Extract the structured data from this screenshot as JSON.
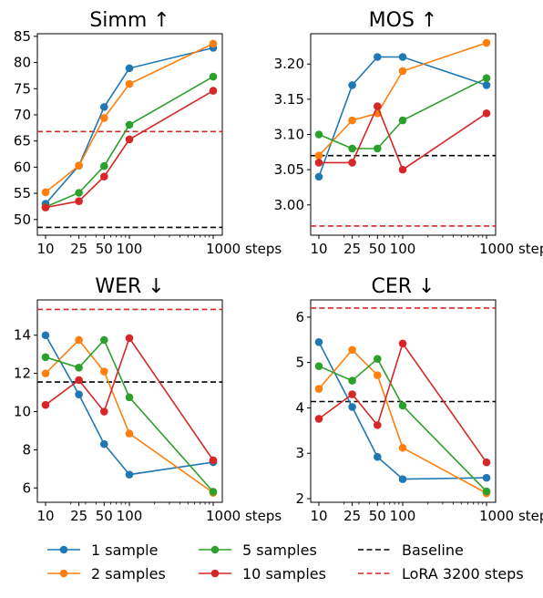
{
  "x_tick_labels": [
    "10",
    "25",
    "50",
    "100",
    "1000 steps"
  ],
  "legend": [
    {
      "label": "1 sample",
      "color": "#1f77b4",
      "style": "marker"
    },
    {
      "label": "2 samples",
      "color": "#ff7f0e",
      "style": "marker"
    },
    {
      "label": "5 samples",
      "color": "#2ca02c",
      "style": "marker"
    },
    {
      "label": "10 samples",
      "color": "#d62728",
      "style": "marker"
    },
    {
      "label": "Baseline",
      "color": "#000000",
      "style": "dashed"
    },
    {
      "label": "LoRA 3200 steps",
      "color": "#d62728",
      "style": "dashed"
    }
  ],
  "chart_data": [
    {
      "type": "line",
      "title": "Simm ↑",
      "x": [
        10,
        25,
        50,
        100,
        1000
      ],
      "xscale": "log",
      "ylim": [
        47,
        85.5
      ],
      "yticks": [
        50,
        55,
        60,
        65,
        70,
        75,
        80,
        85
      ],
      "ytick_labels": [
        "50",
        "55",
        "60",
        "65",
        "70",
        "75",
        "80",
        "85"
      ],
      "series": [
        {
          "name": "1 sample",
          "color": "#1f77b4",
          "values": [
            53.0,
            60.3,
            71.5,
            78.9,
            82.8
          ]
        },
        {
          "name": "2 samples",
          "color": "#ff7f0e",
          "values": [
            55.2,
            60.3,
            69.4,
            75.9,
            83.6
          ]
        },
        {
          "name": "5 samples",
          "color": "#2ca02c",
          "values": [
            52.4,
            55.1,
            60.2,
            68.1,
            77.3
          ]
        },
        {
          "name": "10 samples",
          "color": "#d62728",
          "values": [
            52.3,
            53.5,
            58.2,
            65.3,
            74.6
          ]
        }
      ],
      "hlines": [
        {
          "name": "Baseline",
          "color": "#000000",
          "value": 48.5
        },
        {
          "name": "LoRA 3200 steps",
          "color": "#d62728",
          "value": 66.8
        }
      ]
    },
    {
      "type": "line",
      "title": "MOS ↑",
      "x": [
        10,
        25,
        50,
        100,
        1000
      ],
      "xscale": "log",
      "ylim": [
        2.957,
        3.243
      ],
      "yticks": [
        3.0,
        3.05,
        3.1,
        3.15,
        3.2
      ],
      "ytick_labels": [
        "3.00",
        "3.05",
        "3.10",
        "3.15",
        "3.20"
      ],
      "series": [
        {
          "name": "1 sample",
          "color": "#1f77b4",
          "values": [
            3.04,
            3.17,
            3.21,
            3.21,
            3.17
          ]
        },
        {
          "name": "2 samples",
          "color": "#ff7f0e",
          "values": [
            3.07,
            3.12,
            3.13,
            3.19,
            3.23
          ]
        },
        {
          "name": "5 samples",
          "color": "#2ca02c",
          "values": [
            3.1,
            3.08,
            3.08,
            3.12,
            3.18
          ]
        },
        {
          "name": "10 samples",
          "color": "#d62728",
          "values": [
            3.06,
            3.06,
            3.14,
            3.05,
            3.13
          ]
        }
      ],
      "hlines": [
        {
          "name": "Baseline",
          "color": "#000000",
          "value": 3.07
        },
        {
          "name": "LoRA 3200 steps",
          "color": "#d62728",
          "value": 2.97
        }
      ]
    },
    {
      "type": "line",
      "title": "WER ↓",
      "x": [
        10,
        25,
        50,
        100,
        1000
      ],
      "xscale": "log",
      "ylim": [
        5.25,
        15.85
      ],
      "yticks": [
        6,
        8,
        10,
        12,
        14
      ],
      "ytick_labels": [
        "6",
        "8",
        "10",
        "12",
        "14"
      ],
      "series": [
        {
          "name": "1 sample",
          "color": "#1f77b4",
          "values": [
            14.0,
            10.9,
            8.3,
            6.7,
            7.35
          ]
        },
        {
          "name": "2 samples",
          "color": "#ff7f0e",
          "values": [
            12.0,
            13.75,
            12.1,
            8.85,
            5.75
          ]
        },
        {
          "name": "5 samples",
          "color": "#2ca02c",
          "values": [
            12.85,
            12.3,
            13.75,
            10.75,
            5.8
          ]
        },
        {
          "name": "10 samples",
          "color": "#d62728",
          "values": [
            10.35,
            11.65,
            10.0,
            13.85,
            7.45
          ]
        }
      ],
      "hlines": [
        {
          "name": "Baseline",
          "color": "#000000",
          "value": 11.55
        },
        {
          "name": "LoRA 3200 steps",
          "color": "#d62728",
          "value": 15.35
        }
      ]
    },
    {
      "type": "line",
      "title": "CER ↓",
      "x": [
        10,
        25,
        50,
        100,
        1000
      ],
      "xscale": "log",
      "ylim": [
        1.92,
        6.38
      ],
      "yticks": [
        2,
        3,
        4,
        5,
        6
      ],
      "ytick_labels": [
        "2",
        "3",
        "4",
        "5",
        "6"
      ],
      "series": [
        {
          "name": "1 sample",
          "color": "#1f77b4",
          "values": [
            5.45,
            4.02,
            2.92,
            2.43,
            2.46
          ]
        },
        {
          "name": "2 samples",
          "color": "#ff7f0e",
          "values": [
            4.42,
            5.28,
            4.72,
            3.12,
            2.12
          ]
        },
        {
          "name": "5 samples",
          "color": "#2ca02c",
          "values": [
            4.92,
            4.6,
            5.08,
            4.05,
            2.16
          ]
        },
        {
          "name": "10 samples",
          "color": "#d62728",
          "values": [
            3.76,
            4.3,
            3.62,
            5.42,
            2.8
          ]
        }
      ],
      "hlines": [
        {
          "name": "Baseline",
          "color": "#000000",
          "value": 4.14
        },
        {
          "name": "LoRA 3200 steps",
          "color": "#d62728",
          "value": 6.2
        }
      ]
    }
  ]
}
